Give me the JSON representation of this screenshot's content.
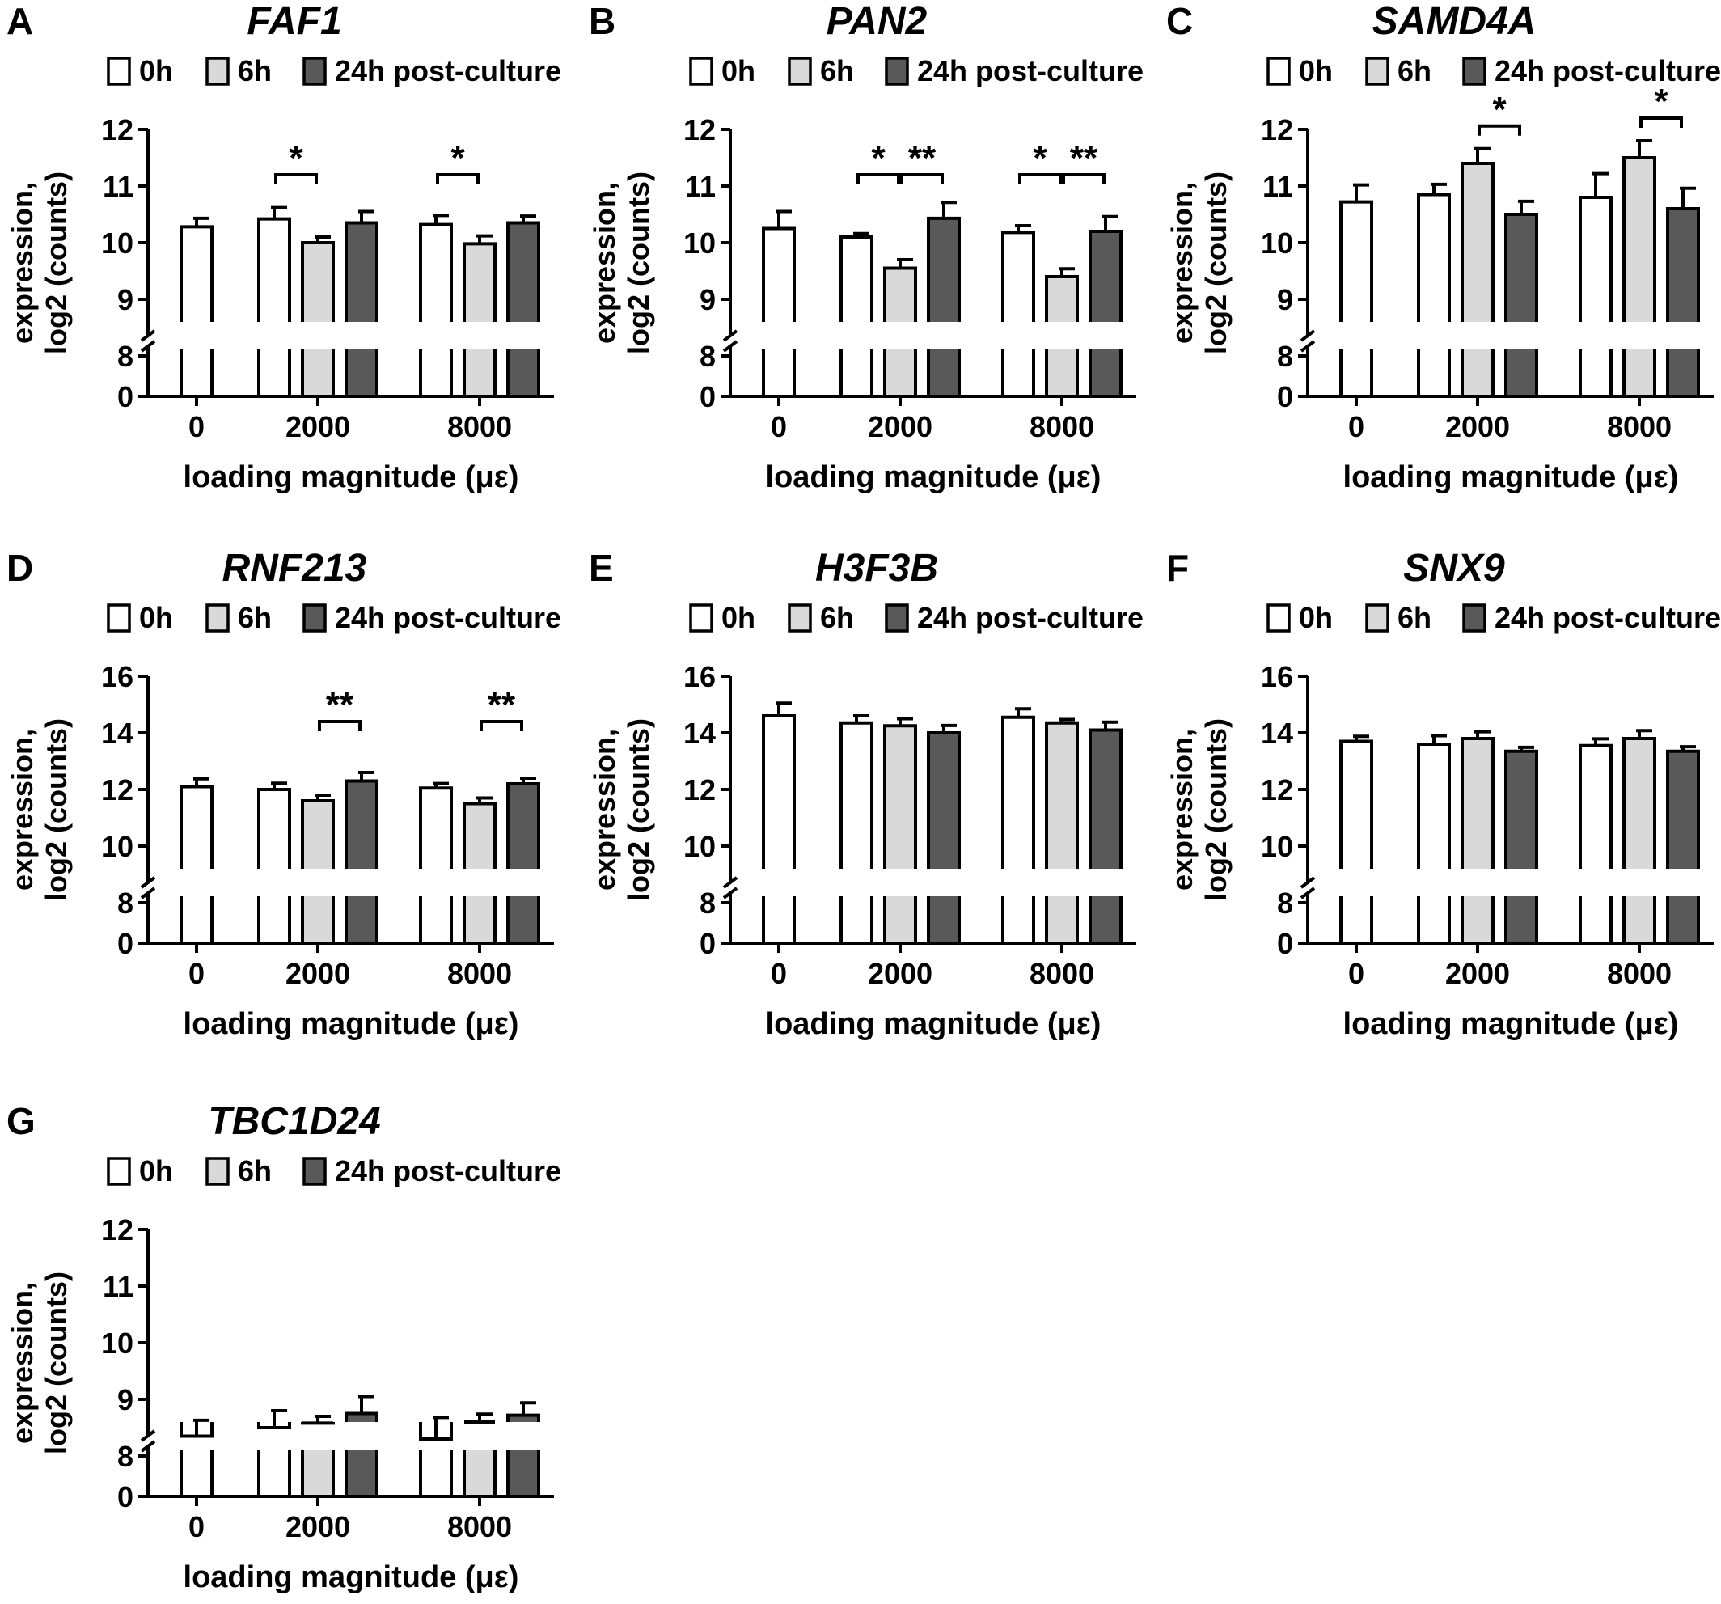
{
  "shared": {
    "xlabel": "loading magnitude (με)",
    "ylabel_line1": "expression,",
    "ylabel_line2": "log2 (counts)",
    "legend": [
      "0h",
      "6h",
      "24h post-culture"
    ],
    "categories": [
      "0",
      "2000",
      "8000"
    ],
    "colors": {
      "0h": "#ffffff",
      "6h": "#d9d9d9",
      "24h post-culture": "#595959"
    }
  },
  "chart_data": [
    {
      "panel": "A",
      "title": "FAF1",
      "type": "bar",
      "xlabel": "loading magnitude (με)",
      "ylabel": "expression, log2 (counts)",
      "categories": [
        "0",
        "2000",
        "8000"
      ],
      "ylim": [
        8,
        12
      ],
      "yticks": [
        9,
        10,
        11,
        12
      ],
      "axis_break": [
        0,
        8
      ],
      "series": [
        {
          "name": "0h",
          "values": [
            10.28,
            10.42,
            10.32
          ],
          "errors": [
            0.15,
            0.2,
            0.16
          ]
        },
        {
          "name": "6h",
          "values": [
            null,
            10.0,
            9.98
          ],
          "errors": [
            null,
            0.1,
            0.14
          ]
        },
        {
          "name": "24h post-culture",
          "values": [
            null,
            10.35,
            10.35
          ],
          "errors": [
            null,
            0.2,
            0.12
          ]
        }
      ],
      "annotations": [
        {
          "label": "*",
          "category": "2000",
          "from": "0h",
          "to": "6h"
        },
        {
          "label": "*",
          "category": "8000",
          "from": "0h",
          "to": "6h"
        }
      ]
    },
    {
      "panel": "B",
      "title": "PAN2",
      "type": "bar",
      "xlabel": "loading magnitude (με)",
      "ylabel": "expression, log2 (counts)",
      "categories": [
        "0",
        "2000",
        "8000"
      ],
      "ylim": [
        8,
        12
      ],
      "yticks": [
        9,
        10,
        11,
        12
      ],
      "axis_break": [
        0,
        8
      ],
      "series": [
        {
          "name": "0h",
          "values": [
            10.25,
            10.1,
            10.18
          ],
          "errors": [
            0.3,
            0.06,
            0.12
          ]
        },
        {
          "name": "6h",
          "values": [
            null,
            9.55,
            9.4
          ],
          "errors": [
            null,
            0.15,
            0.14
          ]
        },
        {
          "name": "24h post-culture",
          "values": [
            null,
            10.43,
            10.2
          ],
          "errors": [
            null,
            0.28,
            0.26
          ]
        }
      ],
      "annotations": [
        {
          "label": "*",
          "category": "2000",
          "from": "0h",
          "to": "6h"
        },
        {
          "label": "**",
          "category": "2000",
          "from": "6h",
          "to": "24h post-culture"
        },
        {
          "label": "*",
          "category": "8000",
          "from": "0h",
          "to": "6h"
        },
        {
          "label": "**",
          "category": "8000",
          "from": "6h",
          "to": "24h post-culture"
        }
      ]
    },
    {
      "panel": "C",
      "title": "SAMD4A",
      "type": "bar",
      "xlabel": "loading magnitude (με)",
      "ylabel": "expression, log2 (counts)",
      "categories": [
        "0",
        "2000",
        "8000"
      ],
      "ylim": [
        8,
        12
      ],
      "yticks": [
        9,
        10,
        11,
        12
      ],
      "axis_break": [
        0,
        8
      ],
      "series": [
        {
          "name": "0h",
          "values": [
            10.72,
            10.85,
            10.8
          ],
          "errors": [
            0.3,
            0.18,
            0.42
          ]
        },
        {
          "name": "6h",
          "values": [
            null,
            11.4,
            11.5
          ],
          "errors": [
            null,
            0.26,
            0.3
          ]
        },
        {
          "name": "24h post-culture",
          "values": [
            null,
            10.5,
            10.6
          ],
          "errors": [
            null,
            0.23,
            0.36
          ]
        }
      ],
      "annotations": [
        {
          "label": "*",
          "category": "2000",
          "from": "6h",
          "to": "24h post-culture"
        },
        {
          "label": "*",
          "category": "8000",
          "from": "6h",
          "to": "24h post-culture"
        }
      ]
    },
    {
      "panel": "D",
      "title": "RNF213",
      "type": "bar",
      "xlabel": "loading magnitude (με)",
      "ylabel": "expression, log2 (counts)",
      "categories": [
        "0",
        "2000",
        "8000"
      ],
      "ylim": [
        8,
        16
      ],
      "yticks": [
        10,
        12,
        14,
        16
      ],
      "axis_break": [
        0,
        8
      ],
      "series": [
        {
          "name": "0h",
          "values": [
            12.1,
            12.0,
            12.05
          ],
          "errors": [
            0.28,
            0.22,
            0.16
          ]
        },
        {
          "name": "6h",
          "values": [
            null,
            11.6,
            11.5
          ],
          "errors": [
            null,
            0.2,
            0.2
          ]
        },
        {
          "name": "24h post-culture",
          "values": [
            null,
            12.3,
            12.2
          ],
          "errors": [
            null,
            0.3,
            0.2
          ]
        }
      ],
      "annotations": [
        {
          "label": "**",
          "category": "2000",
          "from": "6h",
          "to": "24h post-culture"
        },
        {
          "label": "**",
          "category": "8000",
          "from": "6h",
          "to": "24h post-culture"
        }
      ]
    },
    {
      "panel": "E",
      "title": "H3F3B",
      "type": "bar",
      "xlabel": "loading magnitude (με)",
      "ylabel": "expression, log2 (counts)",
      "categories": [
        "0",
        "2000",
        "8000"
      ],
      "ylim": [
        8,
        16
      ],
      "yticks": [
        10,
        12,
        14,
        16
      ],
      "axis_break": [
        0,
        8
      ],
      "series": [
        {
          "name": "0h",
          "values": [
            14.6,
            14.35,
            14.55
          ],
          "errors": [
            0.45,
            0.25,
            0.3
          ]
        },
        {
          "name": "6h",
          "values": [
            null,
            14.25,
            14.35
          ],
          "errors": [
            null,
            0.25,
            0.12
          ]
        },
        {
          "name": "24h post-culture",
          "values": [
            null,
            14.0,
            14.1
          ],
          "errors": [
            null,
            0.26,
            0.28
          ]
        }
      ],
      "annotations": []
    },
    {
      "panel": "F",
      "title": "SNX9",
      "type": "bar",
      "xlabel": "loading magnitude (με)",
      "ylabel": "expression, log2 (counts)",
      "categories": [
        "0",
        "2000",
        "8000"
      ],
      "ylim": [
        8,
        16
      ],
      "yticks": [
        10,
        12,
        14,
        16
      ],
      "axis_break": [
        0,
        8
      ],
      "series": [
        {
          "name": "0h",
          "values": [
            13.7,
            13.6,
            13.55
          ],
          "errors": [
            0.18,
            0.3,
            0.24
          ]
        },
        {
          "name": "6h",
          "values": [
            null,
            13.8,
            13.8
          ],
          "errors": [
            null,
            0.24,
            0.28
          ]
        },
        {
          "name": "24h post-culture",
          "values": [
            null,
            13.35,
            13.35
          ],
          "errors": [
            null,
            0.14,
            0.16
          ]
        }
      ],
      "annotations": []
    },
    {
      "panel": "G",
      "title": "TBC1D24",
      "type": "bar",
      "xlabel": "loading magnitude (με)",
      "ylabel": "expression, log2 (counts)",
      "categories": [
        "0",
        "2000",
        "8000"
      ],
      "ylim": [
        8,
        12
      ],
      "yticks": [
        9,
        10,
        11,
        12
      ],
      "axis_break": [
        0,
        8
      ],
      "series": [
        {
          "name": "0h",
          "values": [
            8.35,
            8.5,
            8.3
          ],
          "errors": [
            0.28,
            0.3,
            0.38
          ]
        },
        {
          "name": "6h",
          "values": [
            null,
            8.58,
            8.6
          ],
          "errors": [
            null,
            0.12,
            0.14
          ]
        },
        {
          "name": "24h post-culture",
          "values": [
            null,
            8.75,
            8.72
          ],
          "errors": [
            null,
            0.3,
            0.22
          ]
        }
      ],
      "annotations": []
    }
  ]
}
